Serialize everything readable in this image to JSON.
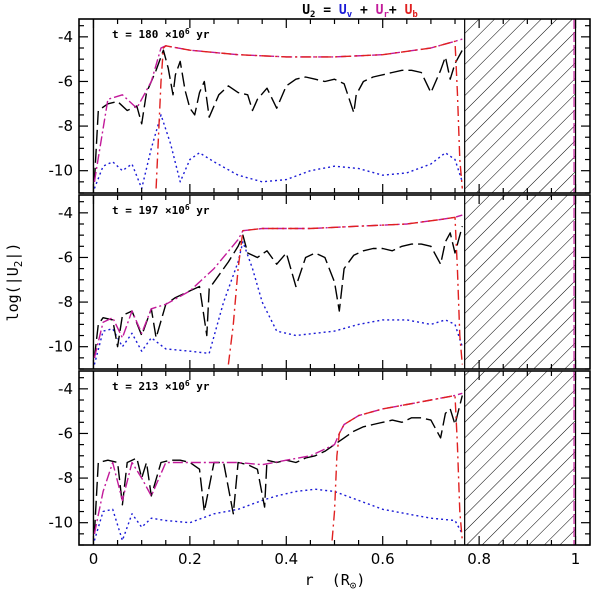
{
  "chart_data": {
    "type": "line",
    "title": {
      "prefix": "U",
      "subscript": "2",
      "equals": " = ",
      "terms": [
        {
          "base": "U",
          "sub": "v",
          "color": "#1a1ad6"
        },
        {
          "base": "U",
          "sub": "r",
          "color": "#c21a9a"
        },
        {
          "base": "U",
          "sub": "b",
          "color": "#e02020"
        }
      ]
    },
    "xlabel": "r  (R",
    "xlabel_symbol": "⊙",
    "ylabel": "log(|U",
    "ylabel_sub": "2",
    "ylabel_end": "|)",
    "xlim": [
      -0.03,
      1.03
    ],
    "ylim": [
      -11.0,
      -3.2
    ],
    "x_ticks": [
      "0",
      "0.2",
      "0.4",
      "0.6",
      "0.8",
      "1"
    ],
    "x_tick_values": [
      0,
      0.2,
      0.4,
      0.6,
      0.8,
      1.0
    ],
    "y_ticks": [
      "-4",
      "-6",
      "-8",
      "-10"
    ],
    "y_tick_values": [
      -4,
      -6,
      -8,
      -10
    ],
    "hatched_region": [
      0.77,
      1.0
    ],
    "series_styles": [
      {
        "name": "U2 (total)",
        "color": "#000000",
        "dash": "14,5"
      },
      {
        "name": "Ur",
        "color": "#c21a9a",
        "dash": "10,3,2,3"
      },
      {
        "name": "Ub",
        "color": "#e02020",
        "dash": "10,4,2,4"
      },
      {
        "name": "Uv",
        "color": "#1a1ad6",
        "dash": "2,3"
      }
    ],
    "panels": [
      {
        "label": "t = 180 ×10",
        "label_exp": "6",
        "label_unit": " yr",
        "series": {
          "total": {
            "x": [
              0.002,
              0.01,
              0.03,
              0.05,
              0.07,
              0.09,
              0.1,
              0.11,
              0.12,
              0.13,
              0.145,
              0.155,
              0.165,
              0.17,
              0.18,
              0.19,
              0.2,
              0.21,
              0.22,
              0.23,
              0.24,
              0.26,
              0.28,
              0.3,
              0.32,
              0.33,
              0.34,
              0.36,
              0.38,
              0.4,
              0.42,
              0.44,
              0.46,
              0.48,
              0.5,
              0.52,
              0.54,
              0.545,
              0.56,
              0.58,
              0.6,
              0.62,
              0.64,
              0.66,
              0.68,
              0.7,
              0.72,
              0.73,
              0.74,
              0.75,
              0.765
            ],
            "y": [
              -10.5,
              -7.3,
              -7.0,
              -6.9,
              -7.3,
              -7.1,
              -7.9,
              -6.5,
              -6.0,
              -5.5,
              -4.6,
              -5.4,
              -6.6,
              -5.7,
              -5.1,
              -6.4,
              -7.2,
              -7.5,
              -6.5,
              -6.0,
              -7.6,
              -6.6,
              -6.2,
              -6.5,
              -6.6,
              -7.3,
              -6.8,
              -6.3,
              -7.2,
              -6.2,
              -5.9,
              -5.8,
              -5.9,
              -6.0,
              -5.9,
              -6.1,
              -7.4,
              -6.6,
              -6.0,
              -5.8,
              -5.7,
              -5.6,
              -5.5,
              -5.5,
              -5.6,
              -6.5,
              -5.5,
              -4.9,
              -5.9,
              -5.2,
              -4.6
            ]
          },
          "ur": {
            "x": [
              0.002,
              0.03,
              0.06,
              0.09,
              0.12,
              0.14,
              0.15,
              0.2,
              0.3,
              0.4,
              0.5,
              0.6,
              0.7,
              0.75,
              0.765
            ],
            "y": [
              -10.5,
              -6.8,
              -6.6,
              -7.2,
              -6.0,
              -4.5,
              -4.4,
              -4.6,
              -4.8,
              -4.9,
              -4.9,
              -4.8,
              -4.5,
              -4.2,
              -4.1
            ]
          },
          "ub": {
            "x": [
              0.13,
              0.14,
              0.145,
              0.15,
              0.2,
              0.3,
              0.4,
              0.5,
              0.6,
              0.7,
              0.75,
              0.755,
              0.76,
              0.765
            ],
            "y": [
              -10.8,
              -6.0,
              -4.5,
              -4.4,
              -4.6,
              -4.8,
              -4.9,
              -4.9,
              -4.8,
              -4.5,
              -4.2,
              -6.5,
              -9.5,
              -10.8
            ]
          },
          "uv": {
            "x": [
              0.002,
              0.02,
              0.04,
              0.06,
              0.08,
              0.1,
              0.12,
              0.14,
              0.16,
              0.18,
              0.2,
              0.22,
              0.25,
              0.3,
              0.35,
              0.4,
              0.45,
              0.5,
              0.55,
              0.6,
              0.65,
              0.7,
              0.73,
              0.75,
              0.765
            ],
            "y": [
              -10.8,
              -9.8,
              -9.6,
              -10.0,
              -9.7,
              -10.8,
              -9.0,
              -7.5,
              -8.8,
              -10.5,
              -9.5,
              -9.2,
              -9.6,
              -10.2,
              -10.5,
              -10.4,
              -10.0,
              -9.8,
              -9.9,
              -10.2,
              -10.1,
              -9.7,
              -9.2,
              -9.5,
              -10.5
            ]
          }
        }
      },
      {
        "label": "t = 197 ×10",
        "label_exp": "6",
        "label_unit": " yr",
        "series": {
          "total": {
            "x": [
              0.002,
              0.01,
              0.02,
              0.04,
              0.05,
              0.06,
              0.08,
              0.1,
              0.12,
              0.13,
              0.15,
              0.17,
              0.2,
              0.22,
              0.235,
              0.24,
              0.26,
              0.28,
              0.3,
              0.31,
              0.32,
              0.34,
              0.36,
              0.38,
              0.4,
              0.42,
              0.44,
              0.46,
              0.48,
              0.5,
              0.51,
              0.52,
              0.54,
              0.56,
              0.58,
              0.6,
              0.62,
              0.64,
              0.66,
              0.68,
              0.7,
              0.72,
              0.73,
              0.74,
              0.75,
              0.765
            ],
            "y": [
              -10.5,
              -9.0,
              -8.7,
              -8.8,
              -10.0,
              -8.6,
              -8.4,
              -9.5,
              -8.3,
              -9.6,
              -8.1,
              -7.8,
              -7.5,
              -7.3,
              -9.5,
              -7.4,
              -6.8,
              -6.2,
              -5.5,
              -5.0,
              -5.8,
              -6.0,
              -5.7,
              -6.3,
              -5.8,
              -7.3,
              -6.0,
              -5.8,
              -6.0,
              -7.1,
              -8.4,
              -6.5,
              -5.9,
              -5.7,
              -5.6,
              -5.6,
              -5.7,
              -5.5,
              -5.4,
              -5.4,
              -5.5,
              -6.3,
              -5.3,
              -4.9,
              -5.8,
              -4.6
            ]
          },
          "ur": {
            "x": [
              0.002,
              0.02,
              0.04,
              0.06,
              0.08,
              0.1,
              0.12,
              0.15,
              0.2,
              0.25,
              0.3,
              0.31,
              0.35,
              0.45,
              0.55,
              0.65,
              0.72,
              0.75,
              0.765
            ],
            "y": [
              -10.5,
              -8.9,
              -8.7,
              -9.6,
              -8.4,
              -9.4,
              -8.3,
              -8.1,
              -7.5,
              -6.5,
              -5.2,
              -4.8,
              -4.7,
              -4.7,
              -4.6,
              -4.5,
              -4.3,
              -4.2,
              -4.1
            ]
          },
          "ub": {
            "x": [
              0.28,
              0.29,
              0.3,
              0.31,
              0.35,
              0.45,
              0.55,
              0.65,
              0.72,
              0.75,
              0.755,
              0.76,
              0.765
            ],
            "y": [
              -10.8,
              -9.0,
              -6.5,
              -4.8,
              -4.7,
              -4.7,
              -4.6,
              -4.5,
              -4.3,
              -4.2,
              -6.5,
              -9.5,
              -10.8
            ]
          },
          "uv": {
            "x": [
              0.002,
              0.02,
              0.04,
              0.06,
              0.08,
              0.1,
              0.12,
              0.15,
              0.2,
              0.24,
              0.27,
              0.3,
              0.31,
              0.33,
              0.35,
              0.38,
              0.42,
              0.46,
              0.5,
              0.55,
              0.6,
              0.65,
              0.7,
              0.73,
              0.75,
              0.765
            ],
            "y": [
              -10.8,
              -9.3,
              -9.2,
              -10.0,
              -9.4,
              -10.2,
              -9.6,
              -10.1,
              -10.2,
              -10.3,
              -8.0,
              -6.2,
              -5.3,
              -6.5,
              -8.0,
              -9.3,
              -9.5,
              -9.4,
              -9.3,
              -9.0,
              -8.8,
              -8.8,
              -9.0,
              -8.8,
              -9.0,
              -10.0
            ]
          }
        }
      },
      {
        "label": "t = 213 ×10",
        "label_exp": "6",
        "label_unit": " yr",
        "series": {
          "total": {
            "x": [
              0.002,
              0.01,
              0.03,
              0.05,
              0.06,
              0.07,
              0.09,
              0.1,
              0.11,
              0.12,
              0.14,
              0.16,
              0.18,
              0.2,
              0.22,
              0.23,
              0.25,
              0.27,
              0.29,
              0.3,
              0.32,
              0.34,
              0.355,
              0.36,
              0.38,
              0.4,
              0.42,
              0.44,
              0.46,
              0.48,
              0.5,
              0.52,
              0.54,
              0.56,
              0.58,
              0.6,
              0.62,
              0.64,
              0.66,
              0.68,
              0.7,
              0.72,
              0.73,
              0.74,
              0.75,
              0.765
            ],
            "y": [
              -10.5,
              -7.3,
              -7.2,
              -7.3,
              -9.2,
              -7.3,
              -7.1,
              -8.0,
              -7.3,
              -8.8,
              -7.3,
              -7.2,
              -7.2,
              -7.3,
              -7.6,
              -9.5,
              -7.3,
              -7.3,
              -9.6,
              -7.3,
              -7.4,
              -7.6,
              -9.3,
              -7.2,
              -7.3,
              -7.2,
              -7.3,
              -7.1,
              -7.0,
              -6.8,
              -6.5,
              -6.2,
              -5.9,
              -5.7,
              -5.6,
              -5.5,
              -5.4,
              -5.5,
              -5.3,
              -5.3,
              -5.4,
              -6.2,
              -5.1,
              -4.9,
              -5.6,
              -4.3
            ]
          },
          "ur": {
            "x": [
              0.002,
              0.02,
              0.04,
              0.06,
              0.08,
              0.1,
              0.12,
              0.15,
              0.2,
              0.25,
              0.3,
              0.35,
              0.4,
              0.45,
              0.5,
              0.51,
              0.52,
              0.55,
              0.6,
              0.65,
              0.7,
              0.75,
              0.765
            ],
            "y": [
              -10.5,
              -8.6,
              -7.3,
              -9.0,
              -7.3,
              -8.0,
              -8.8,
              -7.3,
              -7.3,
              -7.3,
              -7.3,
              -7.4,
              -7.2,
              -7.0,
              -6.5,
              -6.0,
              -5.6,
              -5.2,
              -4.9,
              -4.7,
              -4.5,
              -4.3,
              -4.2
            ]
          },
          "ub": {
            "x": [
              0.495,
              0.5,
              0.505,
              0.51,
              0.52,
              0.55,
              0.6,
              0.65,
              0.7,
              0.75,
              0.755,
              0.76,
              0.765
            ],
            "y": [
              -10.8,
              -9.5,
              -7.0,
              -6.0,
              -5.6,
              -5.2,
              -4.9,
              -4.7,
              -4.5,
              -4.3,
              -6.5,
              -9.5,
              -10.8
            ]
          },
          "uv": {
            "x": [
              0.002,
              0.02,
              0.04,
              0.06,
              0.08,
              0.1,
              0.12,
              0.15,
              0.2,
              0.25,
              0.3,
              0.35,
              0.38,
              0.42,
              0.46,
              0.5,
              0.55,
              0.6,
              0.65,
              0.7,
              0.75,
              0.765
            ],
            "y": [
              -10.8,
              -9.5,
              -9.4,
              -10.8,
              -9.6,
              -10.2,
              -9.8,
              -9.9,
              -10.0,
              -9.6,
              -9.4,
              -9.0,
              -8.8,
              -8.6,
              -8.5,
              -8.6,
              -9.0,
              -9.4,
              -9.6,
              -9.8,
              -9.9,
              -10.5
            ]
          }
        }
      }
    ]
  }
}
